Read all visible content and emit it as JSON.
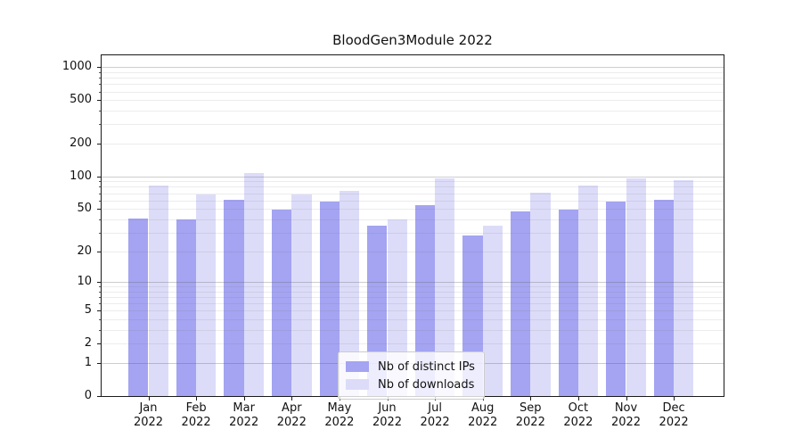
{
  "chart_data": {
    "type": "bar",
    "title": "BloodGen3Module 2022",
    "categories": [
      "Jan",
      "Feb",
      "Mar",
      "Apr",
      "May",
      "Jun",
      "Jul",
      "Aug",
      "Sep",
      "Oct",
      "Nov",
      "Dec"
    ],
    "year_label": "2022",
    "series": [
      {
        "name": "Nb of distinct IPs",
        "color": "#a4a4f2",
        "values": [
          41,
          40,
          61,
          49,
          58,
          35,
          54,
          28,
          47,
          49,
          58,
          61
        ]
      },
      {
        "name": "Nb of downloads",
        "color": "#dcdcf9",
        "values": [
          83,
          68,
          108,
          68,
          73,
          40,
          95,
          35,
          71,
          82,
          96,
          93
        ]
      }
    ],
    "y_axis": {
      "scale": "log1p",
      "ticks": [
        0,
        1,
        2,
        5,
        10,
        20,
        50,
        100,
        200,
        500,
        1000
      ],
      "range": [
        0,
        1283
      ]
    },
    "x_axis": {
      "tick_label_lines": 2
    },
    "grid": {
      "major_values": [
        1,
        10,
        100,
        1000
      ],
      "minor_subs": [
        2,
        3,
        4,
        5,
        6,
        7,
        8,
        9
      ]
    },
    "legend": {
      "position": "lower-center",
      "labels": [
        "Nb of distinct IPs",
        "Nb of downloads"
      ]
    }
  }
}
